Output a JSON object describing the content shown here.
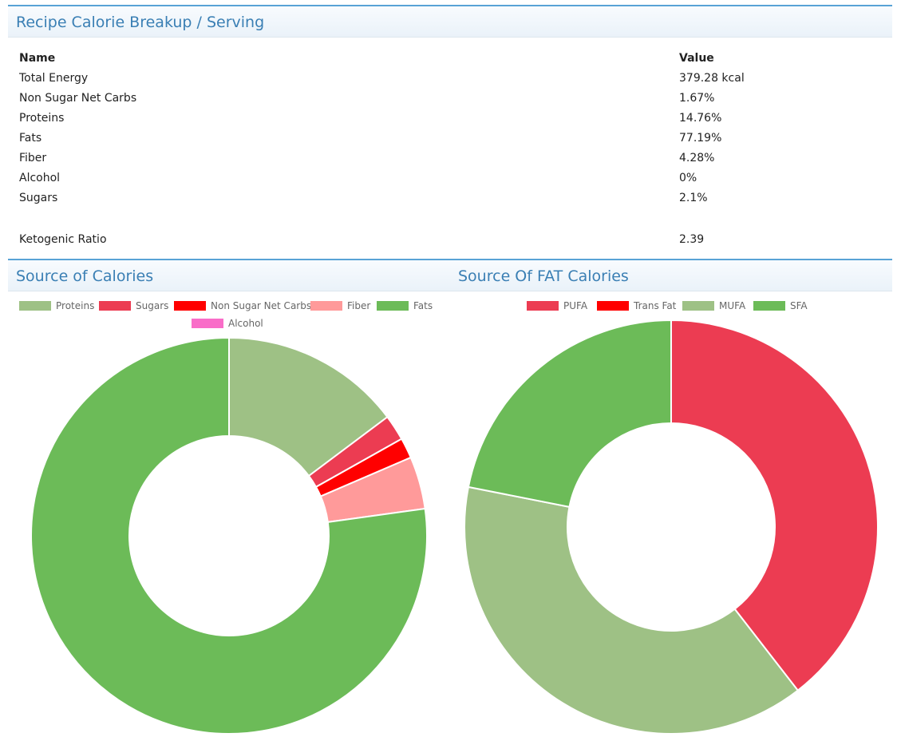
{
  "breakup": {
    "title": "Recipe Calorie Breakup / Serving",
    "columns": [
      "Name",
      "Value"
    ],
    "rows": [
      [
        "Total Energy",
        "379.28 kcal"
      ],
      [
        "Non Sugar Net Carbs",
        "1.67%"
      ],
      [
        "Proteins",
        "14.76%"
      ],
      [
        "Fats",
        "77.19%"
      ],
      [
        "Fiber",
        "4.28%"
      ],
      [
        "Alcohol",
        "0%"
      ],
      [
        "Sugars",
        "2.1%"
      ]
    ],
    "keto": [
      "Ketogenic Ratio",
      "2.39"
    ]
  },
  "colors": {
    "proteins": "#9ec185",
    "sugars": "#ec3c52",
    "net_carbs": "#ff0000",
    "fiber": "#ff9a9a",
    "fats": "#6cbb58",
    "alcohol": "#f96dc8",
    "pufa": "#ec3c52",
    "trans_fat": "#ff0000",
    "mufa": "#9ec185",
    "sfa": "#6cbb58"
  },
  "chart_data": [
    {
      "type": "pie",
      "title": "Source of Calories",
      "labels": [
        "Proteins",
        "Sugars",
        "Non Sugar Net Carbs",
        "Fiber",
        "Fats",
        "Alcohol"
      ],
      "values": [
        14.76,
        2.1,
        1.67,
        4.28,
        77.19,
        0
      ],
      "colors": [
        "#9ec185",
        "#ec3c52",
        "#ff0000",
        "#ff9a9a",
        "#6cbb58",
        "#f96dc8"
      ],
      "legend": "top"
    },
    {
      "type": "pie",
      "title": "Source Of FAT Calories",
      "labels": [
        "PUFA",
        "Trans Fat",
        "MUFA",
        "SFA"
      ],
      "values": [
        39.5,
        0,
        38.6,
        21.9
      ],
      "colors": [
        "#ec3c52",
        "#ff0000",
        "#9ec185",
        "#6cbb58"
      ],
      "legend": "top"
    }
  ]
}
